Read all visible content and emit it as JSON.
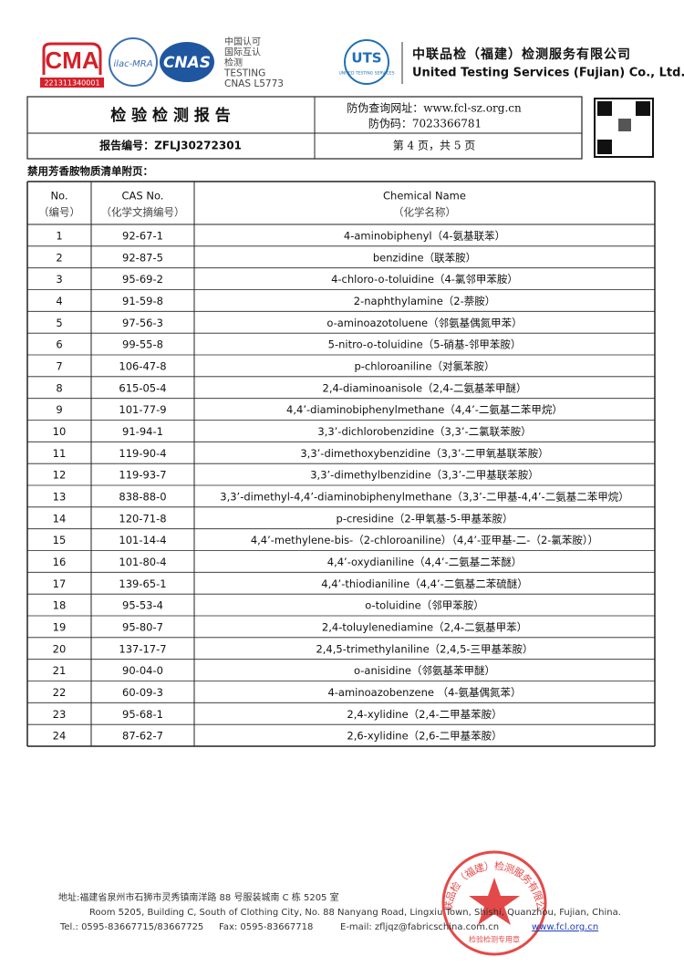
{
  "header": {
    "cma_number": "221311340001",
    "ilac": "ilac-MRA",
    "cnas": "CNAS",
    "accreditation": [
      "中国认可",
      "国际互认",
      "检测",
      "TESTING",
      "CNAS L5773"
    ],
    "uts_logo": "UTS",
    "uts_logo_sub": "UNITED TESTING SERVICES",
    "company_cn": "中联品检（福建）检测服务有限公司",
    "company_en": "United Testing Services (Fujian) Co., Ltd."
  },
  "report": {
    "title": "检 验 检 测 报 告",
    "verify_url": "防伪查询网址：www.fcl-sz.org.cn",
    "verify_code": "防伪码：7023366781",
    "report_no": "报告编号：ZFLJ30272301",
    "page": "第 4 页，共 5 页"
  },
  "section_title": "禁用芳香胺物质清单附页：",
  "table": {
    "header": [
      [
        "No.",
        "（编号）"
      ],
      [
        "CAS No.",
        "（化学文摘编号）"
      ],
      [
        "Chemical Name",
        "（化学名称）"
      ]
    ],
    "rows": [
      [
        "1",
        "92-67-1",
        "4-aminobiphenyl（4-氨基联苯）"
      ],
      [
        "2",
        "92-87-5",
        "benzidine（联苯胺）"
      ],
      [
        "3",
        "95-69-2",
        "4-chloro-o-toluidine（4-氯邻甲苯胺）"
      ],
      [
        "4",
        "91-59-8",
        "2-naphthylamine（2-萘胺）"
      ],
      [
        "5",
        "97-56-3",
        "o-aminoazotoluene（邻氨基偶氮甲苯）"
      ],
      [
        "6",
        "99-55-8",
        "5-nitro-o-toluidine（5-硝基-邻甲苯胺）"
      ],
      [
        "7",
        "106-47-8",
        "p-chloroaniline（对氯苯胺）"
      ],
      [
        "8",
        "615-05-4",
        "2,4-diaminoanisole（2,4-二氨基苯甲醚）"
      ],
      [
        "9",
        "101-77-9",
        "4,4’-diaminobiphenylmethane（4,4’-二氨基二苯甲烷）"
      ],
      [
        "10",
        "91-94-1",
        "3,3’-dichlorobenzidine（3,3’-二氯联苯胺）"
      ],
      [
        "11",
        "119-90-4",
        "3,3’-dimethoxybenzidine（3,3’-二甲氧基联苯胺）"
      ],
      [
        "12",
        "119-93-7",
        "3,3’-dimethylbenzidine（3,3’-二甲基联苯胺）"
      ],
      [
        "13",
        "838-88-0",
        "3,3’-dimethyl-4,4’-diaminobiphenylmethane（3,3’-二甲基-4,4’-二氨基二苯甲烷）"
      ],
      [
        "14",
        "120-71-8",
        "p-cresidine（2-甲氧基-5-甲基苯胺）"
      ],
      [
        "15",
        "101-14-4",
        "4,4’-methylene-bis-（2-chloroaniline）（4,4’-亚甲基-二-（2-氯苯胺））"
      ],
      [
        "16",
        "101-80-4",
        "4,4’-oxydianiline（4,4’-二氨基二苯醚）"
      ],
      [
        "17",
        "139-65-1",
        "4,4’-thiodianiline（4,4’-二氨基二苯硫醚）"
      ],
      [
        "18",
        "95-53-4",
        "o-toluidine（邻甲苯胺）"
      ],
      [
        "19",
        "95-80-7",
        "2,4-toluylenediamine（2,4-二氨基甲苯）"
      ],
      [
        "20",
        "137-17-7",
        "2,4,5-trimethylaniline（2,4,5-三甲基苯胺）"
      ],
      [
        "21",
        "90-04-0",
        "o-anisidine（邻氨基苯甲醚）"
      ],
      [
        "22",
        "60-09-3",
        "4-aminoazobenzene （4-氨基偶氮苯）"
      ],
      [
        "23",
        "95-68-1",
        "2,4-xylidine（2,4-二甲基苯胺）"
      ],
      [
        "24",
        "87-62-7",
        "2,6-xylidine（2,6-二甲基苯胺）"
      ]
    ]
  },
  "footer": {
    "address_cn": "地址:福建省泉州市石狮市灵秀镇南洋路 88 号服装城南 C 栋 5205 室",
    "address_en": "Room 5205, Building C, South of Clothing City, No. 88 Nanyang Road, Lingxiu Town, Shishi, Quanzhou, Fujian, China.",
    "tel": "Tel.: 0595-83667715/83667725",
    "fax": "Fax: 0595-83667718",
    "email": "E-mail: zfljqz@fabricschina.com.cn",
    "web": "www.fcl.org.cn",
    "stamp": "中联品检（福建）检测服务有限公司",
    "stamp_sub": "检验检测专用章"
  }
}
